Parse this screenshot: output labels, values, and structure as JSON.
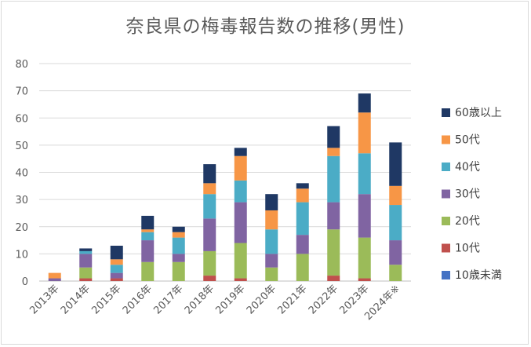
{
  "chart_data": {
    "type": "bar",
    "stacked": true,
    "title": "奈良県の梅毒報告数の推移(男性)",
    "xlabel": "",
    "ylabel": "",
    "ylim": [
      0,
      80
    ],
    "yticks": [
      0,
      10,
      20,
      30,
      40,
      50,
      60,
      70,
      80
    ],
    "grid": true,
    "legend_position": "right",
    "categories": [
      "2013年",
      "2014年",
      "2015年",
      "2016年",
      "2017年",
      "2018年",
      "2019年",
      "2020年",
      "2021年",
      "2022年",
      "2023年",
      "2024年※"
    ],
    "series": [
      {
        "name": "10歳未満",
        "color": "#4472c4",
        "values": [
          0,
          0,
          0,
          0,
          0,
          0,
          0,
          0,
          0,
          0,
          0,
          0
        ]
      },
      {
        "name": "10代",
        "color": "#c0504d",
        "values": [
          0,
          1,
          1,
          0,
          0,
          2,
          1,
          0,
          0,
          2,
          1,
          0
        ]
      },
      {
        "name": "20代",
        "color": "#9bbb59",
        "values": [
          0,
          4,
          0,
          7,
          7,
          9,
          13,
          5,
          10,
          17,
          15,
          6
        ]
      },
      {
        "name": "30代",
        "color": "#8064a2",
        "values": [
          1,
          5,
          2,
          8,
          3,
          12,
          15,
          5,
          7,
          10,
          16,
          9
        ]
      },
      {
        "name": "40代",
        "color": "#4bacc6",
        "values": [
          0,
          1,
          3,
          3,
          6,
          9,
          8,
          9,
          12,
          17,
          15,
          13
        ]
      },
      {
        "name": "50代",
        "color": "#f79646",
        "values": [
          2,
          0,
          2,
          1,
          2,
          4,
          9,
          7,
          5,
          3,
          15,
          7
        ]
      },
      {
        "name": "60歳以上",
        "color": "#1f3864",
        "values": [
          0,
          1,
          5,
          5,
          2,
          7,
          3,
          6,
          2,
          8,
          7,
          16
        ]
      }
    ]
  }
}
